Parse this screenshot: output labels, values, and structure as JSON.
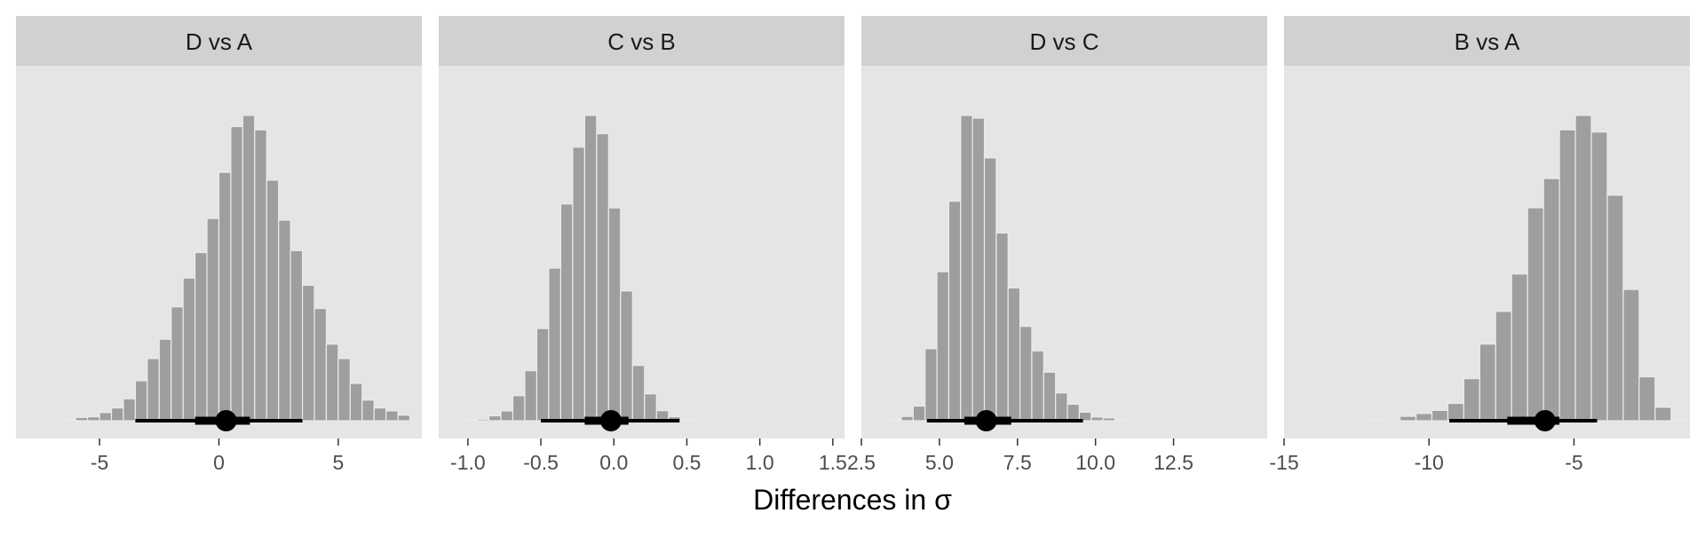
{
  "figure": {
    "xlabel": "Differences in σ"
  },
  "colors": {
    "panel_bg": "#e5e5e5",
    "strip_bg": "#d1d1d1",
    "bar_fill": "#9e9e9e",
    "bar_stroke": "#ebebeb",
    "interval": "#000000",
    "axis_text": "#4d4d4d",
    "strip_text": "#1a1a1a"
  },
  "chart_data": [
    {
      "type": "bar",
      "title": "D vs A",
      "xlim": [
        -8.5,
        8.5
      ],
      "ticks": [
        -5,
        0,
        5
      ],
      "tick_labels": [
        "-5",
        "0",
        "5"
      ],
      "bin_width": 0.5,
      "bins_start": -6.5,
      "values": [
        0.3,
        1.0,
        1.2,
        2.5,
        3.9,
        6.7,
        12.2,
        19.0,
        24.9,
        34.8,
        43.6,
        51.4,
        61.8,
        75.9,
        89.9,
        93.3,
        88.9,
        73.5,
        61.3,
        52.0,
        41.4,
        34.3,
        23.4,
        19.0,
        11.4,
        6.3,
        3.9,
        3.0,
        1.7
      ],
      "interval_95": [
        -3.5,
        3.5
      ],
      "interval_66": [
        -1.0,
        1.3
      ],
      "point": 0.3
    },
    {
      "type": "bar",
      "title": "C vs B",
      "xlim": [
        -1.2,
        1.58
      ],
      "ticks": [
        -1.0,
        -0.5,
        0.0,
        0.5,
        1.0,
        1.5
      ],
      "tick_labels": [
        "-1.0",
        "-0.5",
        "0.0",
        "0.5",
        "1.0",
        "1.5"
      ],
      "bin_width": 0.082,
      "bins_start": -1.02,
      "values": [
        0.2,
        0.5,
        1.6,
        3.2,
        8.2,
        16.4,
        30.2,
        50.0,
        71.0,
        89.6,
        100.0,
        94.0,
        69.7,
        42.5,
        18.1,
        8.8,
        3.3,
        1.3,
        0.3
      ],
      "interval_95": [
        -0.5,
        0.45
      ],
      "interval_66": [
        -0.2,
        0.1
      ],
      "point": -0.02
    },
    {
      "type": "bar",
      "title": "D vs C",
      "xlim": [
        2.5,
        15.5
      ],
      "ticks": [
        2.5,
        5.0,
        7.5,
        10.0,
        12.5
      ],
      "tick_labels": [
        "2.5",
        "5.0",
        "7.5",
        "10.0",
        "12.5"
      ],
      "bin_width": 0.38,
      "bins_start": 3.4,
      "values": [
        0.3,
        1.4,
        4.8,
        23.6,
        48.8,
        71.9,
        100.0,
        99.1,
        86.1,
        61.5,
        43.5,
        30.9,
        22.9,
        15.9,
        9.1,
        5.4,
        2.8,
        1.2,
        0.9,
        0.3
      ],
      "interval_95": [
        4.6,
        9.6
      ],
      "interval_66": [
        5.8,
        7.3
      ],
      "point": 6.5
    },
    {
      "type": "bar",
      "title": "B vs A",
      "xlim": [
        -15,
        -1
      ],
      "ticks": [
        -15,
        -10,
        -5
      ],
      "tick_labels": [
        "-15",
        "-10",
        "-5"
      ],
      "bin_width": 0.55,
      "bins_start": -12.1,
      "values": [
        0.2,
        0.4,
        1.4,
        2.3,
        3.3,
        5.5,
        13.4,
        24.4,
        34.8,
        46.7,
        67.8,
        77.1,
        92.6,
        97.2,
        91.9,
        71.8,
        41.8,
        14.0,
        4.3,
        0.3
      ],
      "interval_95": [
        -9.3,
        -4.2
      ],
      "interval_66": [
        -7.3,
        -5.5
      ],
      "point": -6.0
    }
  ]
}
